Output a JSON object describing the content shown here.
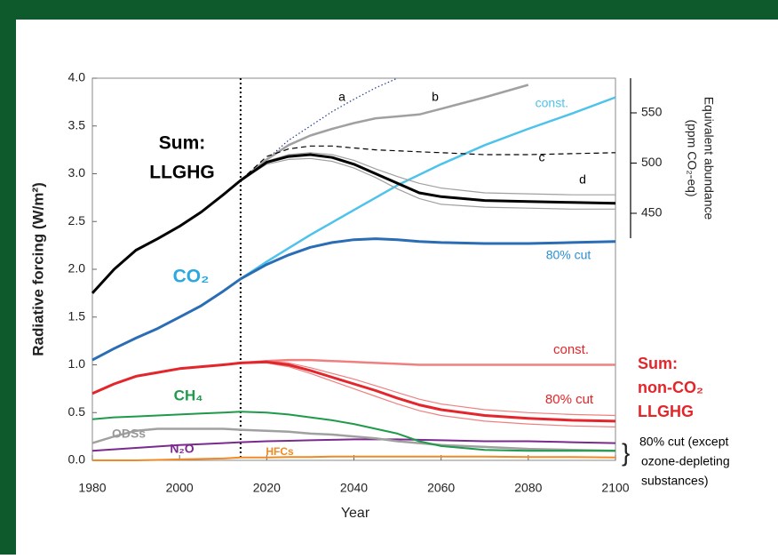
{
  "chart_data": {
    "type": "line",
    "xlabel": "Year",
    "ylabel": "Radiative forcing (W/m²)",
    "y2label": [
      "Equivalent abundance",
      "(ppm CO₂-eq)"
    ],
    "x": [
      1980,
      1985,
      1990,
      1995,
      2000,
      2005,
      2010,
      2014,
      2020,
      2025,
      2030,
      2035,
      2040,
      2045,
      2050,
      2055,
      2060,
      2070,
      2080,
      2090,
      2100
    ],
    "xlim": [
      1980,
      2100
    ],
    "xticks": [
      1980,
      2000,
      2020,
      2040,
      2060,
      2080,
      2100
    ],
    "ylim": [
      0,
      4
    ],
    "yticks": [
      {
        "value": 0,
        "label": "0.0"
      },
      0.5,
      {
        "value": 1,
        "label": "1.0"
      },
      1.5,
      {
        "value": 2,
        "label": "2.0"
      },
      2.5,
      {
        "value": 3,
        "label": "3.0"
      },
      3.5,
      {
        "value": 4,
        "label": "4.0"
      }
    ],
    "y2lim": [
      204,
      584.5
    ],
    "y2ticks": [
      450,
      500,
      550
    ],
    "present_year": 2014,
    "series": [
      {
        "color": "#f08a24",
        "width": 2,
        "values": [
          0,
          0,
          0,
          0.005,
          0.01,
          0.015,
          0.02,
          0.03,
          0.03,
          0.035,
          0.035,
          0.04,
          0.04,
          0.04,
          0.04,
          0.04,
          0.04,
          0.04,
          0.035,
          0.035,
          0.03
        ]
      },
      {
        "color": "#7b2a8e",
        "width": 2,
        "values": [
          0.1,
          0.115,
          0.13,
          0.145,
          0.16,
          0.17,
          0.18,
          0.19,
          0.2,
          0.205,
          0.21,
          0.215,
          0.22,
          0.22,
          0.22,
          0.215,
          0.21,
          0.2,
          0.2,
          0.19,
          0.18
        ]
      },
      {
        "color": "#a0a0a0",
        "width": 2.5,
        "values": [
          0.18,
          0.25,
          0.31,
          0.33,
          0.33,
          0.33,
          0.33,
          0.32,
          0.31,
          0.3,
          0.28,
          0.27,
          0.25,
          0.23,
          0.2,
          0.18,
          0.16,
          0.14,
          0.12,
          0.11,
          0.1
        ]
      },
      {
        "color": "#1f9a4a",
        "width": 2,
        "values": [
          0.43,
          0.45,
          0.46,
          0.47,
          0.48,
          0.49,
          0.5,
          0.51,
          0.5,
          0.48,
          0.45,
          0.42,
          0.38,
          0.33,
          0.28,
          0.2,
          0.15,
          0.11,
          0.1,
          0.1,
          0.1
        ]
      },
      {
        "color": "#f08080",
        "width": 1.2,
        "values": [
          null,
          null,
          null,
          null,
          null,
          null,
          null,
          1.02,
          1.04,
          1.02,
          0.97,
          0.91,
          0.85,
          0.78,
          0.71,
          0.64,
          0.59,
          0.53,
          0.5,
          0.48,
          0.47
        ]
      },
      {
        "color": "#f08080",
        "width": 1.2,
        "values": [
          null,
          null,
          null,
          null,
          null,
          null,
          null,
          1.02,
          1.02,
          0.98,
          0.91,
          0.83,
          0.75,
          0.67,
          0.59,
          0.52,
          0.47,
          0.41,
          0.38,
          0.36,
          0.35
        ]
      },
      {
        "color": "#f08080",
        "width": 2.5,
        "values": [
          null,
          null,
          null,
          null,
          null,
          null,
          null,
          1.02,
          1.04,
          1.05,
          1.05,
          1.04,
          1.03,
          1.02,
          1.01,
          1.0,
          1.0,
          1.0,
          1.0,
          1.0,
          1.0
        ]
      },
      {
        "color": "#e3262b",
        "width": 3,
        "values": [
          0.7,
          0.8,
          0.88,
          0.92,
          0.96,
          0.98,
          1.0,
          1.02,
          1.03,
          1.0,
          0.94,
          0.87,
          0.8,
          0.73,
          0.65,
          0.58,
          0.53,
          0.47,
          0.44,
          0.42,
          0.41
        ]
      },
      {
        "color": "#4dc3ec",
        "width": 2.5,
        "values": [
          null,
          null,
          null,
          null,
          null,
          null,
          null,
          1.9,
          2.08,
          2.22,
          2.36,
          2.49,
          2.62,
          2.75,
          2.88,
          2.99,
          3.1,
          3.3,
          3.47,
          3.63,
          3.8
        ]
      },
      {
        "color": "#2a6db5",
        "width": 3,
        "values": [
          1.05,
          1.17,
          1.28,
          1.38,
          1.5,
          1.62,
          1.77,
          1.9,
          2.05,
          2.15,
          2.23,
          2.28,
          2.31,
          2.32,
          2.31,
          2.29,
          2.28,
          2.27,
          2.27,
          2.28,
          2.29
        ]
      },
      {
        "color": "#223a8c",
        "width": 1.2,
        "dash": "dotted",
        "values": [
          null,
          null,
          null,
          null,
          null,
          null,
          null,
          2.93,
          3.15,
          3.35,
          3.5,
          3.65,
          3.78,
          3.9,
          4.0,
          null,
          null,
          null,
          null,
          null,
          null
        ]
      },
      {
        "color": "#a0a0a0",
        "width": 2.5,
        "values": [
          null,
          null,
          null,
          null,
          null,
          null,
          null,
          2.93,
          3.15,
          3.3,
          3.4,
          3.47,
          3.53,
          3.58,
          3.6,
          3.62,
          3.68,
          3.8,
          3.93,
          null,
          null
        ]
      },
      {
        "color": "#000000",
        "width": 1.2,
        "dash": "dashed",
        "values": [
          null,
          null,
          null,
          null,
          null,
          null,
          null,
          2.93,
          3.18,
          3.26,
          3.29,
          3.29,
          3.27,
          3.25,
          3.24,
          3.23,
          3.22,
          3.2,
          3.2,
          3.21,
          3.22
        ]
      },
      {
        "color": "#a0a0a0",
        "width": 1.2,
        "values": [
          null,
          null,
          null,
          null,
          null,
          null,
          null,
          2.93,
          3.13,
          3.2,
          3.22,
          3.2,
          3.14,
          3.05,
          2.97,
          2.9,
          2.85,
          2.8,
          2.79,
          2.78,
          2.78
        ]
      },
      {
        "color": "#a0a0a0",
        "width": 1.2,
        "values": [
          null,
          null,
          null,
          null,
          null,
          null,
          null,
          2.93,
          3.1,
          3.15,
          3.16,
          3.13,
          3.06,
          2.96,
          2.84,
          2.74,
          2.68,
          2.65,
          2.64,
          2.63,
          2.63
        ]
      },
      {
        "color": "#000000",
        "width": 3,
        "values": [
          1.75,
          2.0,
          2.2,
          2.32,
          2.45,
          2.6,
          2.78,
          2.93,
          3.12,
          3.18,
          3.2,
          3.17,
          3.1,
          3.0,
          2.9,
          2.8,
          2.76,
          2.72,
          2.71,
          2.7,
          2.69
        ]
      }
    ],
    "annotations": [
      "a",
      "b",
      "c",
      "d",
      "const.",
      "Sum:",
      "LLGHG",
      "CO₂",
      "80% cut",
      "const.",
      "80% cut",
      "CH₄",
      "ODSs",
      "N₂O",
      "HFCs",
      "Sum:",
      "non-CO₂",
      "LLGHG",
      "80% cut (except",
      "ozone-depleting",
      "substances)"
    ]
  }
}
